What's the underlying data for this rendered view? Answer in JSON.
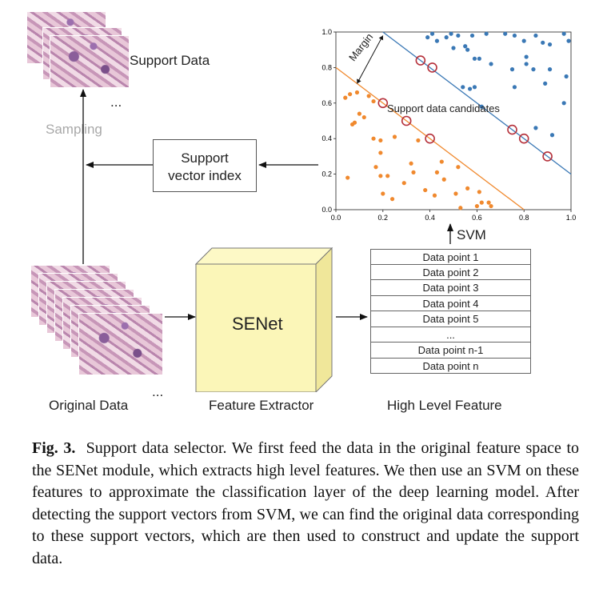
{
  "support_data": {
    "label": "Support Data",
    "ellipsis": "..."
  },
  "sampling": {
    "label": "Sampling"
  },
  "support_vector_index": {
    "line1": "Support",
    "line2": "vector index"
  },
  "original_data": {
    "label": "Original Data",
    "ellipsis": "..."
  },
  "feature_extractor": {
    "name": "SENet",
    "label": "Feature Extractor"
  },
  "high_level_feature": {
    "label": "High Level Feature",
    "rows": [
      "Data point 1",
      "Data point 2",
      "Data point 3",
      "Data point 4",
      "Data point 5",
      "...",
      "Data point n-1",
      "Data point n"
    ]
  },
  "svm": {
    "label": "SVM"
  },
  "chart_data": {
    "type": "scatter",
    "xlim": [
      0.0,
      1.0
    ],
    "ylim": [
      0.0,
      1.0
    ],
    "xticks": [
      "0.0",
      "0.2",
      "0.4",
      "0.6",
      "0.8",
      "1.0"
    ],
    "yticks": [
      "0.0",
      "0.2",
      "0.4",
      "0.6",
      "0.8",
      "1.0"
    ],
    "annotations": {
      "margin": "Margin",
      "candidates": "Support data candidates"
    },
    "colors": {
      "blue": "#3a78b5",
      "orange": "#f0892e",
      "circle": "#b5303a"
    },
    "blue_line": [
      [
        0.2,
        1.0
      ],
      [
        1.0,
        0.2
      ]
    ],
    "orange_line": [
      [
        0.0,
        0.8
      ],
      [
        0.8,
        0.0
      ]
    ],
    "series": [
      {
        "color": "blue",
        "points": [
          [
            0.39,
            0.97
          ],
          [
            0.41,
            0.99
          ],
          [
            0.43,
            0.95
          ],
          [
            0.47,
            0.97
          ],
          [
            0.49,
            0.99
          ],
          [
            0.52,
            0.98
          ],
          [
            0.58,
            0.98
          ],
          [
            0.64,
            0.99
          ],
          [
            0.72,
            0.99
          ],
          [
            0.76,
            0.98
          ],
          [
            0.8,
            0.95
          ],
          [
            0.85,
            0.98
          ],
          [
            0.88,
            0.94
          ],
          [
            0.91,
            0.93
          ],
          [
            0.97,
            0.99
          ],
          [
            0.99,
            0.95
          ],
          [
            0.59,
            0.85
          ],
          [
            0.61,
            0.85
          ],
          [
            0.66,
            0.82
          ],
          [
            0.75,
            0.79
          ],
          [
            0.81,
            0.86
          ],
          [
            0.81,
            0.82
          ],
          [
            0.84,
            0.79
          ],
          [
            0.91,
            0.79
          ],
          [
            0.98,
            0.75
          ],
          [
            0.54,
            0.69
          ],
          [
            0.57,
            0.68
          ],
          [
            0.59,
            0.69
          ],
          [
            0.76,
            0.69
          ],
          [
            0.89,
            0.71
          ],
          [
            0.62,
            0.58
          ],
          [
            0.97,
            0.6
          ],
          [
            0.85,
            0.46
          ],
          [
            0.92,
            0.42
          ],
          [
            0.5,
            0.91
          ],
          [
            0.55,
            0.92
          ],
          [
            0.56,
            0.9
          ]
        ]
      },
      {
        "color": "orange",
        "points": [
          [
            0.04,
            0.63
          ],
          [
            0.06,
            0.65
          ],
          [
            0.09,
            0.66
          ],
          [
            0.14,
            0.64
          ],
          [
            0.16,
            0.61
          ],
          [
            0.08,
            0.49
          ],
          [
            0.07,
            0.48
          ],
          [
            0.1,
            0.54
          ],
          [
            0.12,
            0.52
          ],
          [
            0.16,
            0.4
          ],
          [
            0.19,
            0.39
          ],
          [
            0.19,
            0.32
          ],
          [
            0.17,
            0.24
          ],
          [
            0.19,
            0.19
          ],
          [
            0.22,
            0.19
          ],
          [
            0.2,
            0.09
          ],
          [
            0.24,
            0.06
          ],
          [
            0.33,
            0.21
          ],
          [
            0.32,
            0.26
          ],
          [
            0.25,
            0.41
          ],
          [
            0.35,
            0.39
          ],
          [
            0.42,
            0.08
          ],
          [
            0.43,
            0.21
          ],
          [
            0.46,
            0.17
          ],
          [
            0.51,
            0.09
          ],
          [
            0.53,
            0.01
          ],
          [
            0.56,
            0.12
          ],
          [
            0.61,
            0.1
          ],
          [
            0.62,
            0.04
          ],
          [
            0.65,
            0.04
          ],
          [
            0.66,
            0.02
          ],
          [
            0.05,
            0.18
          ],
          [
            0.38,
            0.11
          ],
          [
            0.29,
            0.15
          ],
          [
            0.6,
            0.02
          ],
          [
            0.52,
            0.24
          ],
          [
            0.45,
            0.27
          ]
        ]
      }
    ],
    "circled": [
      [
        0.36,
        0.84
      ],
      [
        0.41,
        0.8
      ],
      [
        0.75,
        0.45
      ],
      [
        0.8,
        0.4
      ],
      [
        0.9,
        0.3
      ],
      [
        0.2,
        0.6
      ],
      [
        0.3,
        0.5
      ],
      [
        0.4,
        0.4
      ]
    ]
  },
  "caption": {
    "fig": "Fig. 3.",
    "text": "Support data selector. We first feed the data in the original feature space to the SENet module, which extracts high level features. We then use an SVM on these features to approximate the classification layer of the deep learning model. After detecting the support vectors from SVM, we can find the original data corresponding to these support vectors, which are then used to construct and update the support data."
  }
}
